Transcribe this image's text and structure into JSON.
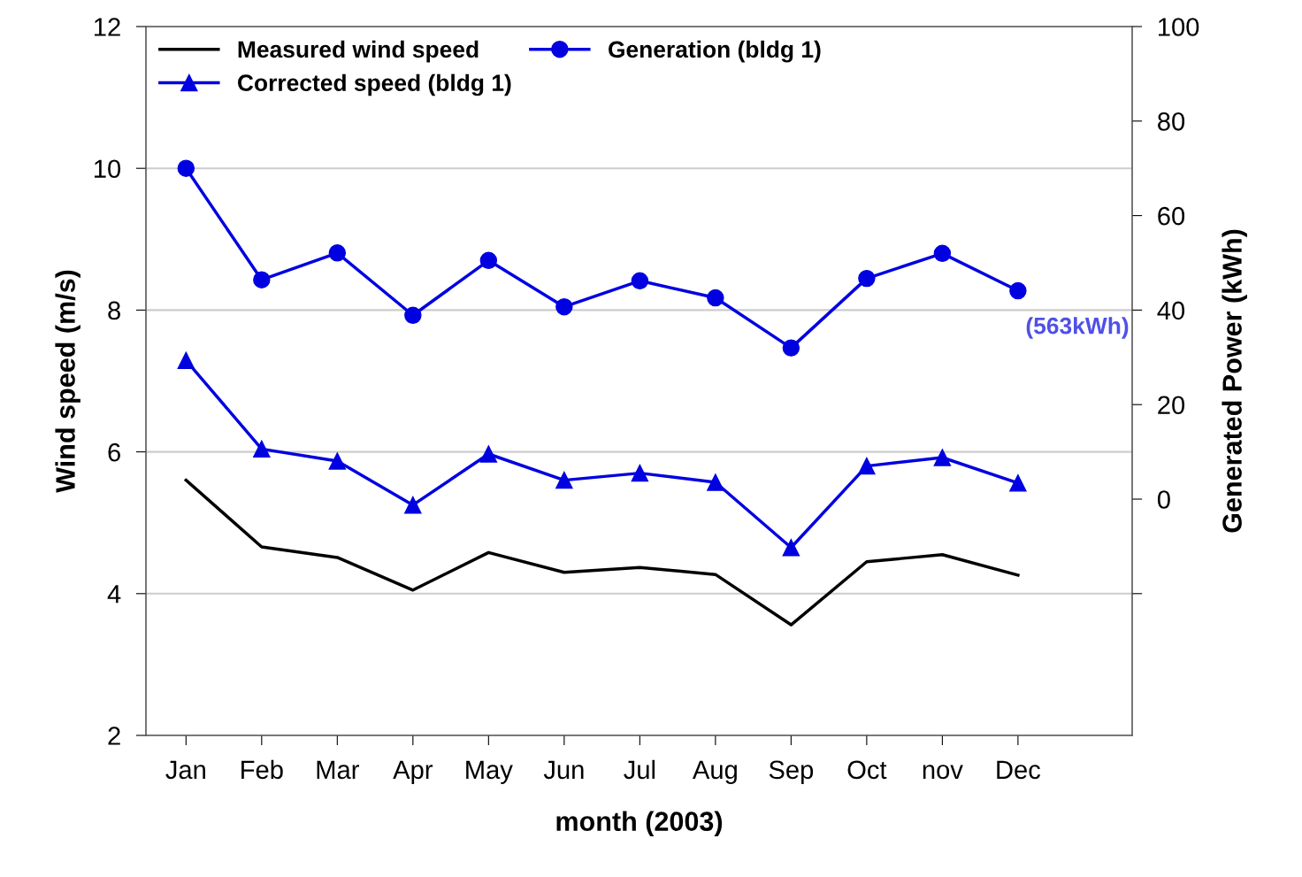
{
  "chart_data": {
    "type": "line",
    "xlabel": "month (2003)",
    "ylabel": "Wind speed (m/s)",
    "y2label": "Generated Power (kWh)",
    "categories": [
      "Jan",
      "Feb",
      "Mar",
      "Apr",
      "May",
      "Jun",
      "Jul",
      "Aug",
      "Sep",
      "Oct",
      "nov",
      "Dec"
    ],
    "series": [
      {
        "name": "Measured wind speed",
        "color": "#000000",
        "marker": "none",
        "values": [
          5.6,
          4.66,
          4.51,
          4.05,
          4.58,
          4.3,
          4.37,
          4.27,
          3.56,
          4.45,
          4.55,
          4.26
        ]
      },
      {
        "name": "Corrected speed (bldg 1)",
        "color": "#0000e0",
        "marker": "triangle",
        "values": [
          7.29,
          6.04,
          5.87,
          5.25,
          5.97,
          5.6,
          5.7,
          5.57,
          4.65,
          5.8,
          5.92,
          5.56
        ]
      },
      {
        "name": "Generation (bldg 1)",
        "color": "#0000e0",
        "marker": "circle",
        "axis": "y2",
        "values": [
          70,
          46.4,
          52.1,
          38.9,
          50.5,
          40.7,
          46.2,
          42.6,
          32,
          46.7,
          52,
          44.1
        ]
      }
    ],
    "ylim": [
      2,
      12
    ],
    "yticks": [
      2,
      4,
      6,
      8,
      10,
      12
    ],
    "y2lim": [
      -50,
      100
    ],
    "y2ticks": [
      {
        "value": -20,
        "label": null
      },
      0,
      20,
      40,
      60,
      80,
      100
    ],
    "annotations": [
      "(563kWh)"
    ],
    "grid": "y",
    "legend": "top left",
    "line_style": "solid"
  }
}
